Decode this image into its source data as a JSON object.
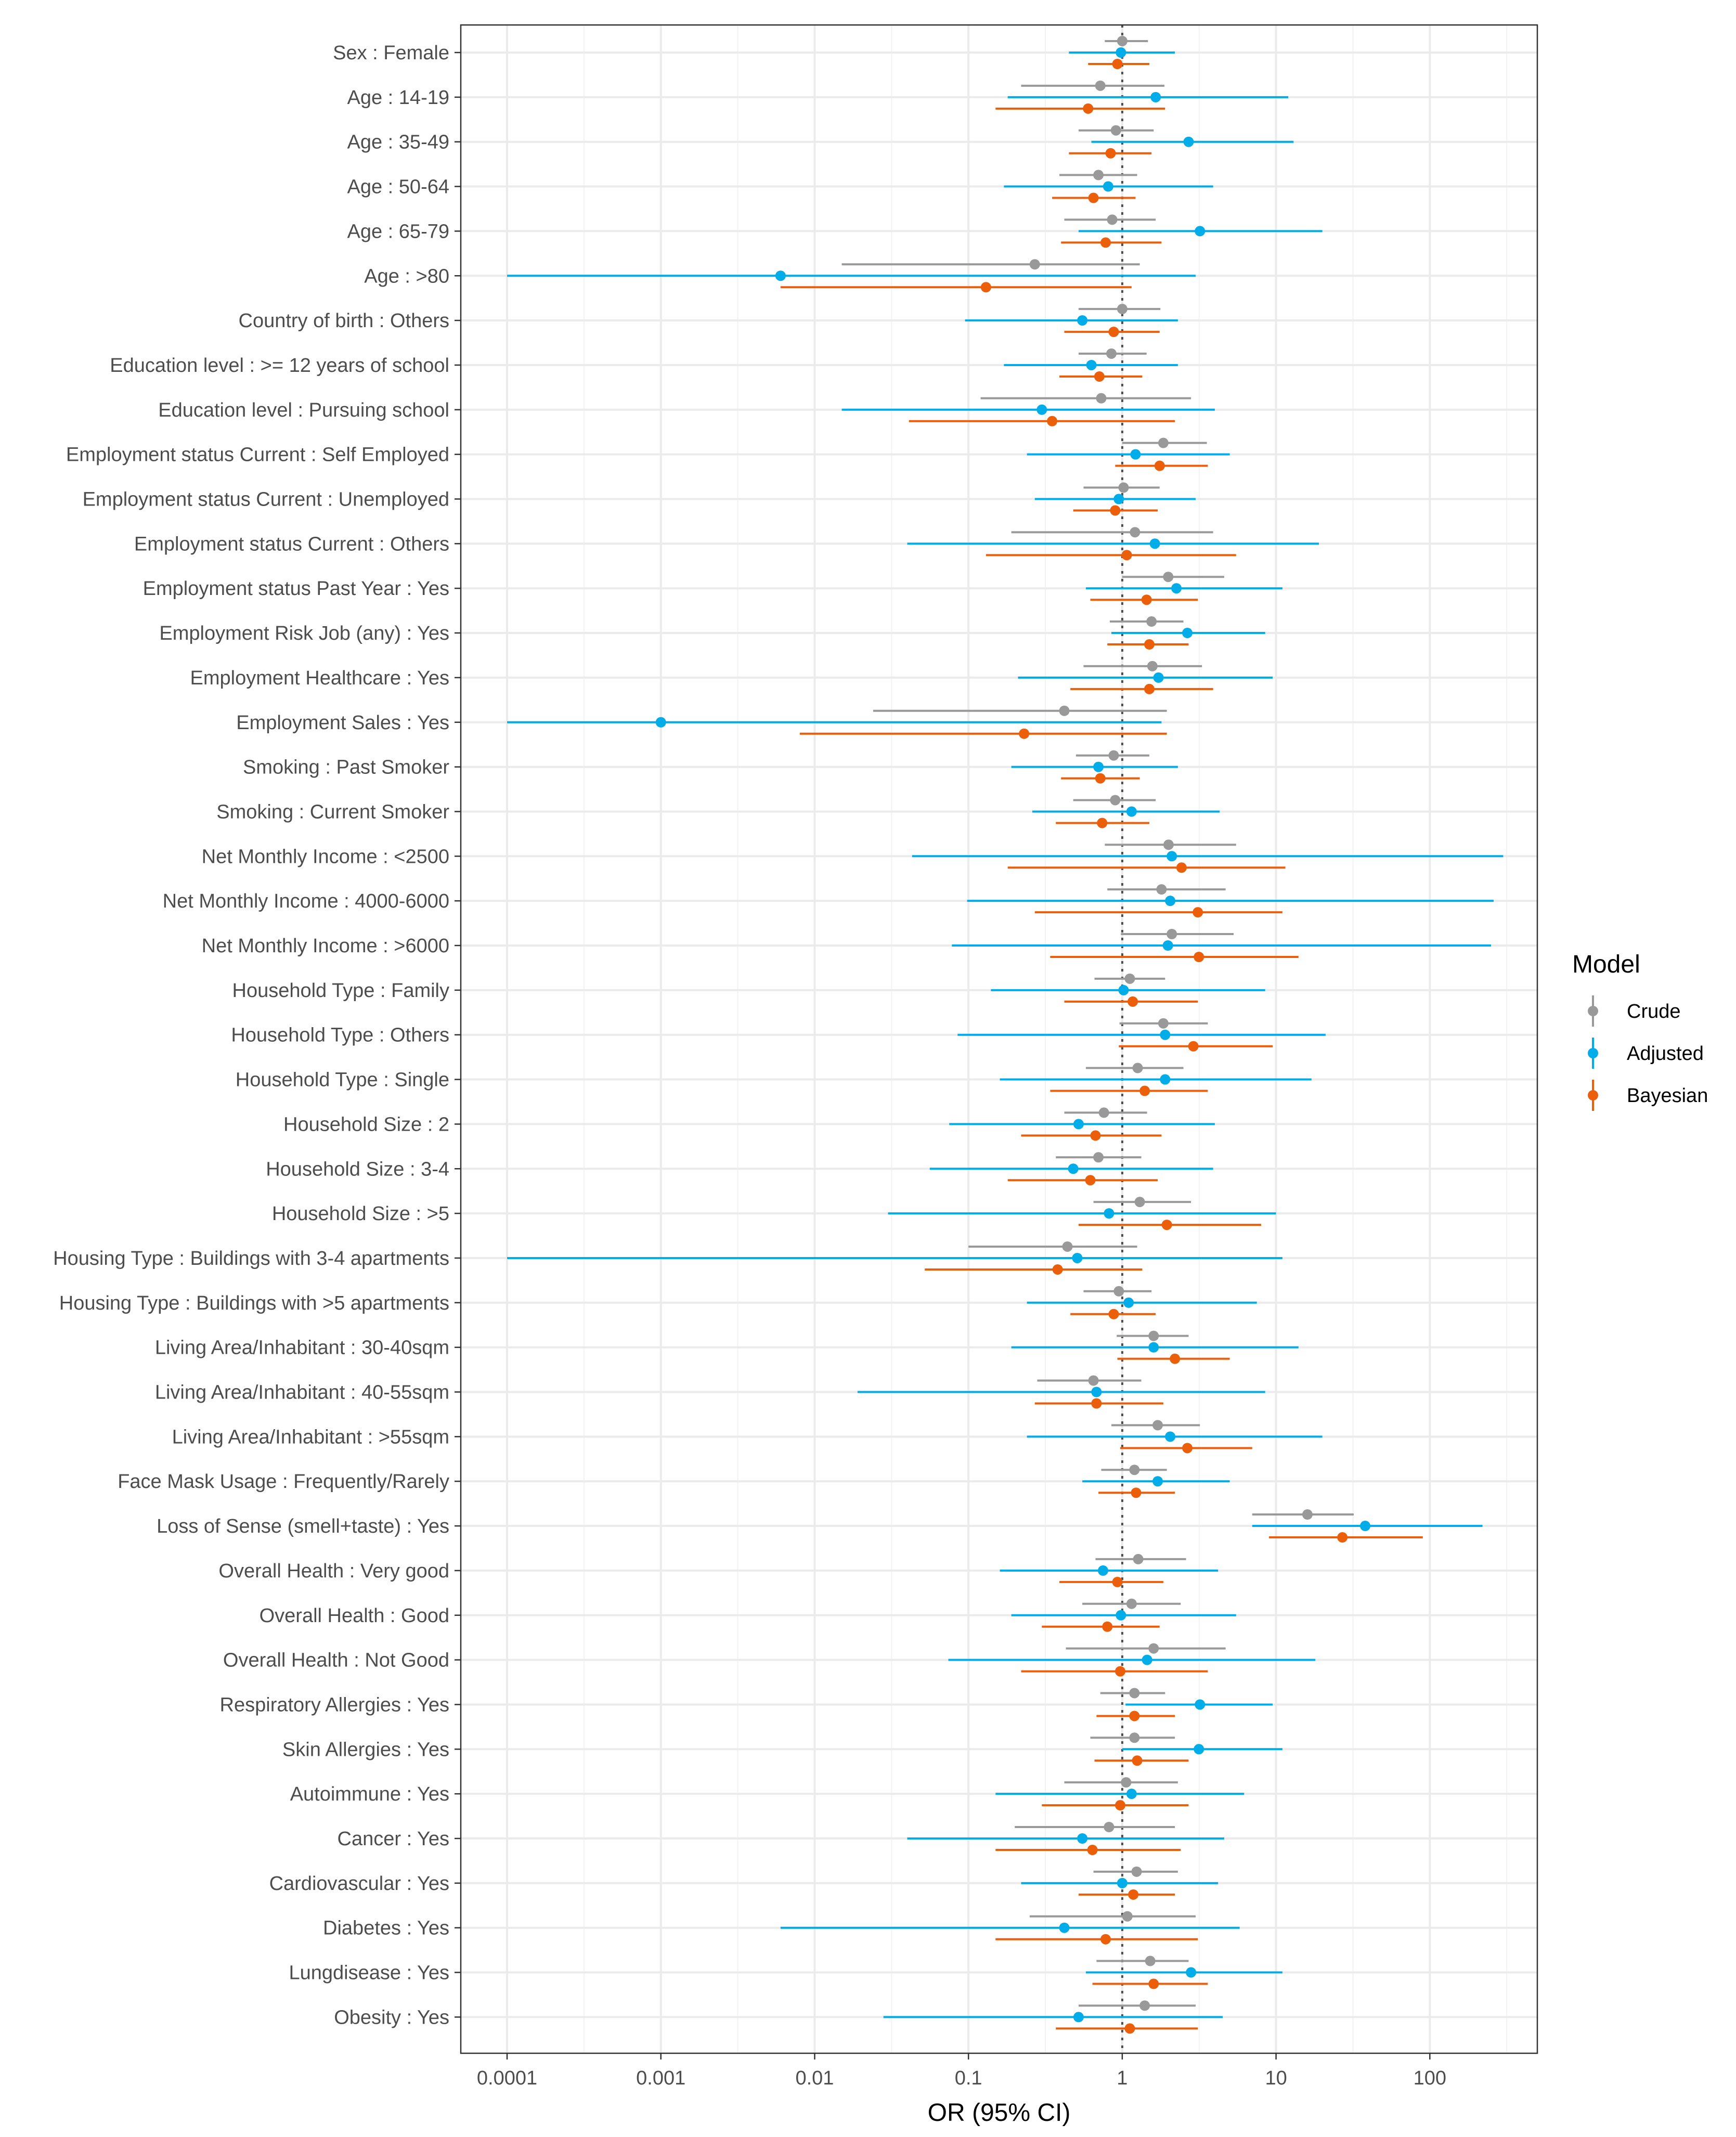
{
  "chart_data": {
    "type": "scatter",
    "subtype": "forest-plot",
    "xlabel": "OR (95% CI)",
    "x_scale": "log10",
    "xlim": [
      5e-05,
      500
    ],
    "x_ticks": [
      0.0001,
      0.001,
      0.01,
      0.1,
      1,
      10,
      100
    ],
    "x_tick_labels": [
      "0.0001",
      "0.001",
      "0.01",
      "0.1",
      "1",
      "10",
      "100"
    ],
    "reference_line": 1,
    "grid": true,
    "legend": {
      "title": "Model",
      "position": "right",
      "entries": [
        {
          "name": "Crude",
          "color": "#999999"
        },
        {
          "name": "Adjusted",
          "color": "#00ade8"
        },
        {
          "name": "Bayesian",
          "color": "#ec5f0a"
        }
      ]
    },
    "categories": [
      "Sex : Female",
      "Age : 14-19",
      "Age : 35-49",
      "Age : 50-64",
      "Age : 65-79",
      "Age : >80",
      "Country of birth : Others",
      "Education level : >= 12 years of school",
      "Education level : Pursuing school",
      "Employment status Current : Self Employed",
      "Employment status Current : Unemployed",
      "Employment status Current : Others",
      "Employment status Past Year : Yes",
      "Employment Risk Job (any) : Yes",
      "Employment Healthcare : Yes",
      "Employment Sales : Yes",
      "Smoking : Past Smoker",
      "Smoking : Current Smoker",
      "Net Monthly Income : <2500",
      "Net Monthly Income : 4000-6000",
      "Net Monthly Income : >6000",
      "Household Type : Family",
      "Household Type : Others",
      "Household Type : Single",
      "Household Size : 2",
      "Household Size : 3-4",
      "Household Size : >5",
      "Housing Type : Buildings with 3-4 apartments",
      "Housing Type : Buildings with >5 apartments",
      "Living Area/Inhabitant : 30-40sqm",
      "Living Area/Inhabitant : 40-55sqm",
      "Living Area/Inhabitant : >55sqm",
      "Face Mask Usage : Frequently/Rarely",
      "Loss of Sense (smell+taste) : Yes",
      "Overall Health : Very good",
      "Overall Health : Good",
      "Overall Health : Not Good",
      "Respiratory Allergies : Yes",
      "Skin Allergies : Yes",
      "Autoimmune : Yes",
      "Cancer : Yes",
      "Cardiovascular  : Yes",
      "Diabetes : Yes",
      "Lungdisease : Yes",
      "Obesity : Yes"
    ],
    "series": [
      {
        "name": "Crude",
        "color": "#999999",
        "est": [
          1.0,
          0.72,
          0.91,
          0.7,
          0.86,
          0.27,
          1.0,
          0.85,
          0.73,
          1.85,
          1.02,
          1.21,
          1.99,
          1.55,
          1.57,
          0.42,
          0.88,
          0.9,
          2.0,
          1.8,
          2.1,
          1.12,
          1.85,
          1.26,
          0.76,
          0.7,
          1.3,
          0.44,
          0.95,
          1.6,
          0.65,
          1.7,
          1.2,
          16.0,
          1.27,
          1.15,
          1.6,
          1.2,
          1.2,
          1.06,
          0.82,
          1.24,
          1.08,
          1.52,
          1.4
        ],
        "lo": [
          0.77,
          0.22,
          0.52,
          0.39,
          0.42,
          0.015,
          0.52,
          0.52,
          0.12,
          1.0,
          0.56,
          0.19,
          1.0,
          0.83,
          0.56,
          0.024,
          0.5,
          0.48,
          0.77,
          0.8,
          0.98,
          0.66,
          0.96,
          0.58,
          0.42,
          0.37,
          0.65,
          0.1,
          0.56,
          0.92,
          0.28,
          0.85,
          0.73,
          7.0,
          0.67,
          0.55,
          0.43,
          0.72,
          0.62,
          0.42,
          0.2,
          0.65,
          0.25,
          0.68,
          0.52
        ],
        "hi": [
          1.47,
          1.88,
          1.6,
          1.25,
          1.65,
          1.3,
          1.77,
          1.44,
          2.8,
          3.55,
          1.75,
          3.9,
          4.6,
          2.5,
          3.3,
          1.95,
          1.5,
          1.65,
          5.5,
          4.7,
          5.3,
          1.9,
          3.6,
          2.5,
          1.45,
          1.33,
          2.8,
          1.25,
          1.55,
          2.7,
          1.33,
          3.2,
          1.95,
          32.0,
          2.6,
          2.4,
          4.7,
          1.9,
          2.2,
          2.3,
          2.2,
          2.3,
          3.0,
          2.7,
          3.0
        ]
      },
      {
        "name": "Adjusted",
        "color": "#00ade8",
        "est": [
          0.98,
          1.65,
          2.7,
          0.81,
          3.2,
          0.006,
          0.55,
          0.63,
          0.3,
          1.22,
          0.95,
          1.63,
          2.25,
          2.65,
          1.72,
          0.001,
          0.7,
          1.15,
          2.1,
          2.05,
          1.98,
          1.02,
          1.9,
          1.9,
          0.52,
          0.48,
          0.82,
          0.51,
          1.1,
          1.6,
          0.68,
          2.05,
          1.7,
          38.0,
          0.75,
          0.98,
          1.45,
          3.2,
          3.15,
          1.15,
          0.55,
          1.0,
          0.42,
          2.8,
          0.52
        ],
        "lo": [
          0.45,
          0.18,
          0.63,
          0.17,
          0.52,
          0.0001,
          0.095,
          0.17,
          0.015,
          0.24,
          0.27,
          0.04,
          0.58,
          0.85,
          0.21,
          0.0001,
          0.19,
          0.26,
          0.043,
          0.098,
          0.078,
          0.14,
          0.085,
          0.16,
          0.075,
          0.056,
          0.03,
          0.0001,
          0.24,
          0.19,
          0.019,
          0.24,
          0.55,
          7.0,
          0.16,
          0.19,
          0.074,
          1.05,
          1.0,
          0.15,
          0.04,
          0.22,
          0.006,
          0.58,
          0.028
        ],
        "hi": [
          2.2,
          12.0,
          13.0,
          3.9,
          20.0,
          3.0,
          2.3,
          2.3,
          4.0,
          5.0,
          3.0,
          19.0,
          11.0,
          8.5,
          9.5,
          1.8,
          2.3,
          4.3,
          300.0,
          260.0,
          250.0,
          8.5,
          21.0,
          17.0,
          4.0,
          3.9,
          10.0,
          11.0,
          7.5,
          14.0,
          8.5,
          20.0,
          5.0,
          220.0,
          4.2,
          5.5,
          18.0,
          9.5,
          11.0,
          6.2,
          4.6,
          4.2,
          5.8,
          11.0,
          4.5
        ]
      },
      {
        "name": "Bayesian",
        "color": "#ec5f0a",
        "est": [
          0.93,
          0.6,
          0.84,
          0.65,
          0.78,
          0.13,
          0.88,
          0.71,
          0.35,
          1.75,
          0.9,
          1.07,
          1.44,
          1.5,
          1.5,
          0.23,
          0.72,
          0.74,
          2.43,
          3.1,
          3.15,
          1.17,
          2.9,
          1.4,
          0.67,
          0.62,
          1.95,
          0.38,
          0.88,
          2.2,
          0.68,
          2.65,
          1.23,
          27.0,
          0.93,
          0.8,
          0.97,
          1.2,
          1.25,
          0.97,
          0.64,
          1.18,
          0.78,
          1.6,
          1.12
        ],
        "lo": [
          0.6,
          0.15,
          0.45,
          0.35,
          0.4,
          0.006,
          0.42,
          0.39,
          0.041,
          0.9,
          0.48,
          0.13,
          0.62,
          0.8,
          0.46,
          0.008,
          0.4,
          0.37,
          0.18,
          0.27,
          0.34,
          0.42,
          0.95,
          0.34,
          0.22,
          0.18,
          0.52,
          0.052,
          0.46,
          0.93,
          0.27,
          0.97,
          0.7,
          9.0,
          0.39,
          0.3,
          0.22,
          0.68,
          0.66,
          0.3,
          0.15,
          0.52,
          0.15,
          0.64,
          0.37
        ],
        "hi": [
          1.5,
          1.9,
          1.55,
          1.22,
          1.8,
          1.15,
          1.75,
          1.35,
          2.2,
          3.6,
          1.7,
          5.5,
          3.1,
          2.7,
          3.9,
          1.95,
          1.3,
          1.5,
          11.5,
          11.0,
          14.0,
          3.1,
          9.5,
          3.6,
          1.8,
          1.7,
          8.0,
          1.35,
          1.65,
          5.0,
          1.85,
          7.0,
          2.2,
          90.0,
          1.85,
          1.75,
          3.6,
          2.2,
          2.7,
          2.7,
          2.4,
          2.2,
          3.1,
          3.6,
          3.1
        ]
      }
    ]
  }
}
